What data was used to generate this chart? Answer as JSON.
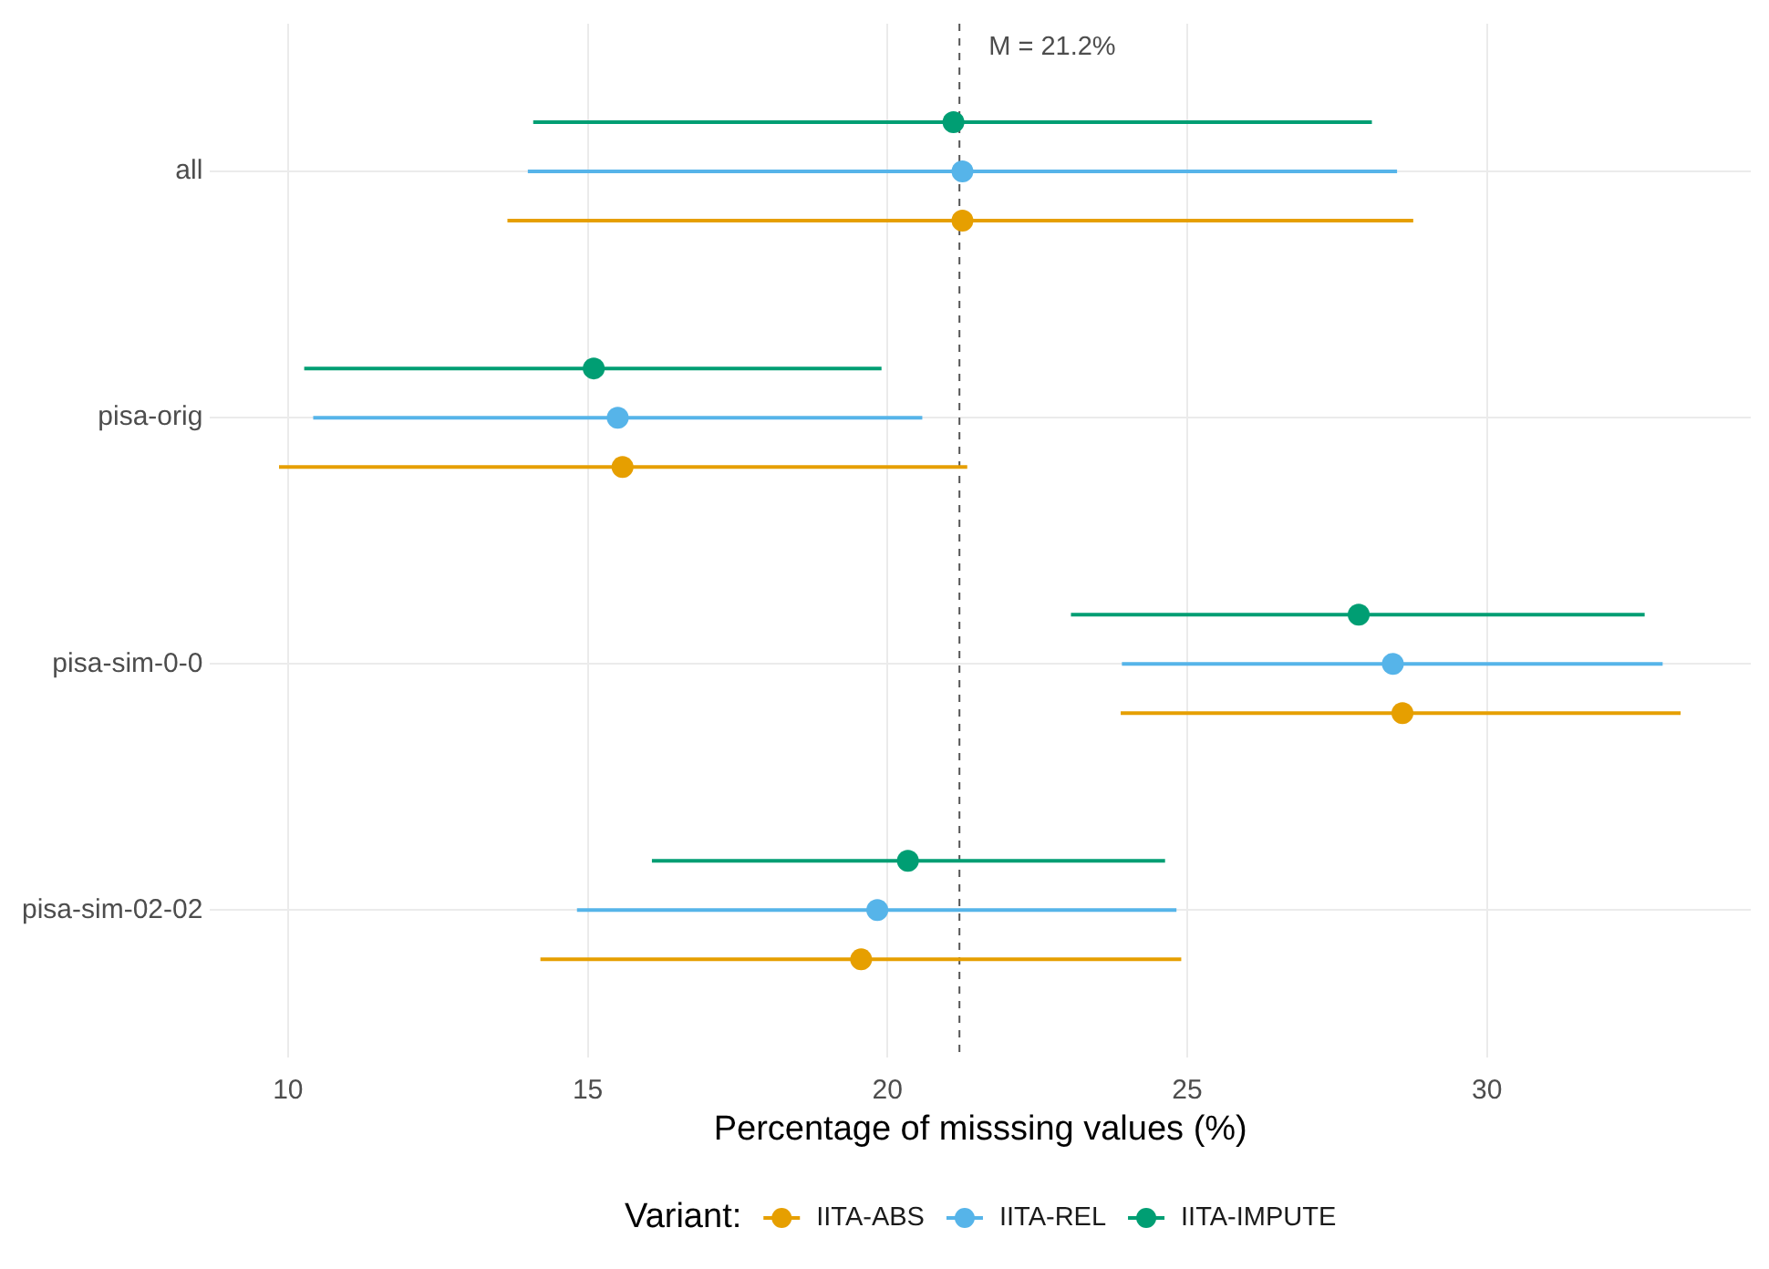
{
  "chart_data": {
    "type": "scatter",
    "orientation": "horizontal",
    "categories": [
      "all",
      "pisa-orig",
      "pisa-sim-0-0",
      "pisa-sim-02-02"
    ],
    "series": [
      {
        "name": "IITA-ABS",
        "color": "#e69f00",
        "values": [
          21.25,
          15.58,
          28.59,
          19.56
        ],
        "errors": [
          [
            13.66,
            28.77
          ],
          [
            9.85,
            21.33
          ],
          [
            23.89,
            33.23
          ],
          [
            14.21,
            24.9
          ]
        ]
      },
      {
        "name": "IITA-REL",
        "color": "#56b4e9",
        "values": [
          21.25,
          15.5,
          28.43,
          19.83
        ],
        "errors": [
          [
            14.0,
            28.5
          ],
          [
            10.42,
            20.58
          ],
          [
            23.91,
            32.93
          ],
          [
            14.82,
            24.82
          ]
        ]
      },
      {
        "name": "IITA-IMPUTE",
        "color": "#009e73",
        "values": [
          21.1,
          15.1,
          27.86,
          20.34
        ],
        "errors": [
          [
            14.09,
            28.08
          ],
          [
            10.27,
            19.9
          ],
          [
            23.06,
            32.63
          ],
          [
            16.07,
            24.63
          ]
        ]
      }
    ],
    "xlabel": "Percentage of misssing values (%)",
    "xlim": [
      8.7,
      34.4
    ],
    "xticks": [
      10,
      15,
      20,
      25,
      30
    ],
    "ref_lines": [
      {
        "axis": "x",
        "value": 21.2,
        "label": "M = 21.2%",
        "color": "#555555",
        "line_style": "dashed"
      }
    ],
    "legend": "bottom",
    "legend_title": "Variant:",
    "marker": "circle",
    "grid": true
  }
}
